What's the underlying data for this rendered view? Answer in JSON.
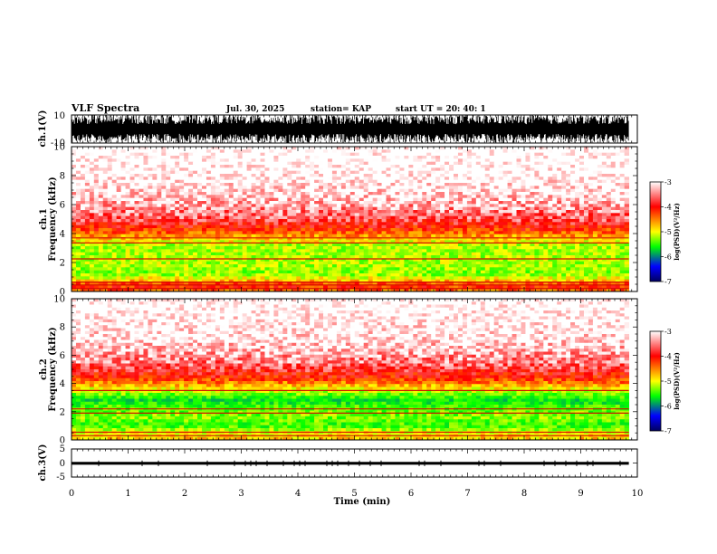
{
  "header": {
    "title": "VLF Spectra",
    "date": "Jul. 30, 2025",
    "station": "station= KAP",
    "start": "start  UT  =   20: 40: 1"
  },
  "chart_data": [
    {
      "type": "line",
      "panel": "ch1-waveform",
      "ylabel": "ch.1(V)",
      "ylim": [
        -10,
        10
      ],
      "yticks": [
        10,
        -10
      ],
      "xlim": [
        0,
        10
      ],
      "envelope_max": 10,
      "envelope_min": -10,
      "data_end_min": 9.85
    },
    {
      "type": "heatmap",
      "panel": "ch1-spectrogram",
      "ylabel": "ch.1 Frequency (kHz)",
      "ylim": [
        0,
        10
      ],
      "yticks": [
        0,
        2,
        4,
        6,
        8,
        10
      ],
      "xlim": [
        0,
        10
      ],
      "data_end_min": 9.85,
      "level_profile": [
        {
          "khz": 0.0,
          "log_psd": -4.0
        },
        {
          "khz": 0.4,
          "log_psd": -3.7
        },
        {
          "khz": 0.8,
          "log_psd": -4.3
        },
        {
          "khz": 1.2,
          "log_psd": -4.7
        },
        {
          "khz": 1.8,
          "log_psd": -4.6
        },
        {
          "khz": 2.5,
          "log_psd": -4.6
        },
        {
          "khz": 3.2,
          "log_psd": -4.6
        },
        {
          "khz": 3.7,
          "log_psd": -4.2
        },
        {
          "khz": 4.2,
          "log_psd": -3.8
        },
        {
          "khz": 5.0,
          "log_psd": -3.4
        },
        {
          "khz": 6.5,
          "log_psd": -3.1
        },
        {
          "khz": 8.0,
          "log_psd": -2.95
        },
        {
          "khz": 10.0,
          "log_psd": -2.9
        }
      ],
      "lines_khz": [
        0.2,
        0.45,
        0.65,
        2.25,
        3.35,
        3.7
      ]
    },
    {
      "type": "heatmap",
      "panel": "ch2-spectrogram",
      "ylabel": "ch.2 Frequency (kHz)",
      "ylim": [
        0,
        10
      ],
      "yticks": [
        0,
        2,
        4,
        6,
        8,
        10
      ],
      "xlim": [
        0,
        10
      ],
      "data_end_min": 9.85,
      "level_profile": [
        {
          "khz": 0.0,
          "log_psd": -4.2
        },
        {
          "khz": 0.5,
          "log_psd": -4.4
        },
        {
          "khz": 1.0,
          "log_psd": -4.9
        },
        {
          "khz": 1.6,
          "log_psd": -4.7
        },
        {
          "khz": 2.2,
          "log_psd": -4.8
        },
        {
          "khz": 2.8,
          "log_psd": -5.1
        },
        {
          "khz": 3.4,
          "log_psd": -4.6
        },
        {
          "khz": 3.9,
          "log_psd": -4.1
        },
        {
          "khz": 4.4,
          "log_psd": -3.7
        },
        {
          "khz": 5.5,
          "log_psd": -3.3
        },
        {
          "khz": 7.0,
          "log_psd": -3.05
        },
        {
          "khz": 10.0,
          "log_psd": -2.9
        }
      ],
      "lines_khz": [
        0.3,
        0.55,
        1.9,
        2.2,
        3.5
      ]
    },
    {
      "type": "line",
      "panel": "ch3-waveform",
      "ylabel": "ch.3(V)",
      "ylim": [
        -5,
        5
      ],
      "yticks": [
        5,
        0,
        -5
      ],
      "xlim": [
        0,
        10
      ],
      "xlabel": "Time (min)",
      "xticks": [
        0,
        1,
        2,
        3,
        4,
        5,
        6,
        7,
        8,
        9,
        10
      ],
      "envelope_max": 0.4,
      "envelope_min": -0.6,
      "data_end_min": 9.85
    }
  ],
  "colorbar": {
    "ticks": [
      -3,
      -4,
      -5,
      -6,
      -7
    ],
    "range": [
      -7,
      -3
    ],
    "label": "log(PSD)(V²/Hz)",
    "stops": [
      "#ffffff",
      "#ff0000",
      "#ffff00",
      "#00ff00",
      "#0000ff",
      "#000060"
    ]
  }
}
